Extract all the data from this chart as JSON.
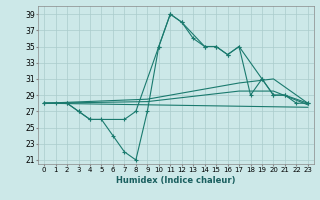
{
  "xlabel": "Humidex (Indice chaleur)",
  "background_color": "#cce8e8",
  "grid_color": "#aacccc",
  "line_color": "#1a7a6e",
  "xlim": [
    -0.5,
    23.5
  ],
  "ylim": [
    20.5,
    40
  ],
  "xticks": [
    0,
    1,
    2,
    3,
    4,
    5,
    6,
    7,
    8,
    9,
    10,
    11,
    12,
    13,
    14,
    15,
    16,
    17,
    18,
    19,
    20,
    21,
    22,
    23
  ],
  "yticks": [
    21,
    23,
    25,
    27,
    29,
    31,
    33,
    35,
    37,
    39
  ],
  "curves": [
    {
      "x": [
        0,
        1,
        2,
        3,
        4,
        5,
        6,
        7,
        8,
        9,
        10,
        11,
        12,
        13,
        14,
        15,
        16,
        17,
        18,
        19,
        20,
        21,
        22,
        23
      ],
      "y": [
        28,
        28,
        28,
        27,
        26,
        26,
        24,
        22,
        21,
        27,
        35,
        39,
        38,
        36,
        35,
        35,
        34,
        35,
        29,
        31,
        29,
        29,
        28,
        28
      ],
      "marker": true
    },
    {
      "x": [
        0,
        2,
        3,
        4,
        7,
        8,
        10,
        11,
        12,
        14,
        15,
        16,
        17,
        19,
        20,
        21,
        23
      ],
      "y": [
        28,
        28,
        27,
        26,
        26,
        27,
        35,
        39,
        38,
        35,
        35,
        34,
        35,
        31,
        29,
        29,
        28
      ],
      "marker": true
    },
    {
      "x": [
        0,
        23
      ],
      "y": [
        28.0,
        27.5
      ],
      "marker": false
    },
    {
      "x": [
        0,
        9,
        17,
        20,
        23
      ],
      "y": [
        28,
        28.5,
        30.5,
        31,
        28
      ],
      "marker": false
    },
    {
      "x": [
        0,
        9,
        17,
        20,
        23
      ],
      "y": [
        28,
        28.2,
        29.5,
        29.5,
        27.8
      ],
      "marker": false
    }
  ]
}
